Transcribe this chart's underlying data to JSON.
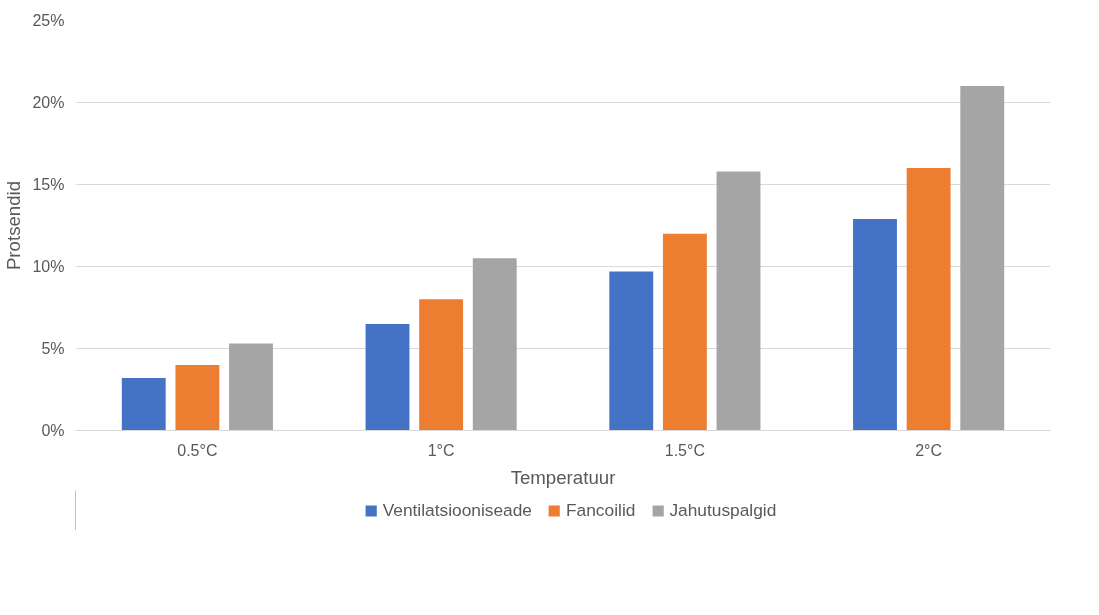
{
  "chart_data": {
    "type": "bar",
    "xlabel": "Temperatuur",
    "ylabel": "Protsendid",
    "categories": [
      "0.5°C",
      "1°C",
      "1.5°C",
      "2°C"
    ],
    "series": [
      {
        "name": "Ventilatsiooniseade",
        "color": "#4472c4",
        "values": [
          3.2,
          6.5,
          9.7,
          12.9
        ]
      },
      {
        "name": "Fancoilid",
        "color": "#ed7d31",
        "values": [
          4.0,
          8.0,
          12.0,
          16.0
        ]
      },
      {
        "name": "Jahutuspalgid",
        "color": "#a5a5a5",
        "values": [
          5.3,
          10.5,
          15.8,
          21.0
        ]
      }
    ],
    "ylim": [
      0,
      25
    ],
    "yticks": [
      {
        "value": 0,
        "label": "0%"
      },
      {
        "value": 5,
        "label": "5%"
      },
      {
        "value": 10,
        "label": "10%"
      },
      {
        "value": 15,
        "label": "15%"
      },
      {
        "value": 20,
        "label": "20%"
      },
      {
        "value": 25,
        "label": "25%"
      }
    ],
    "grid": "y",
    "legend": "bottom"
  }
}
